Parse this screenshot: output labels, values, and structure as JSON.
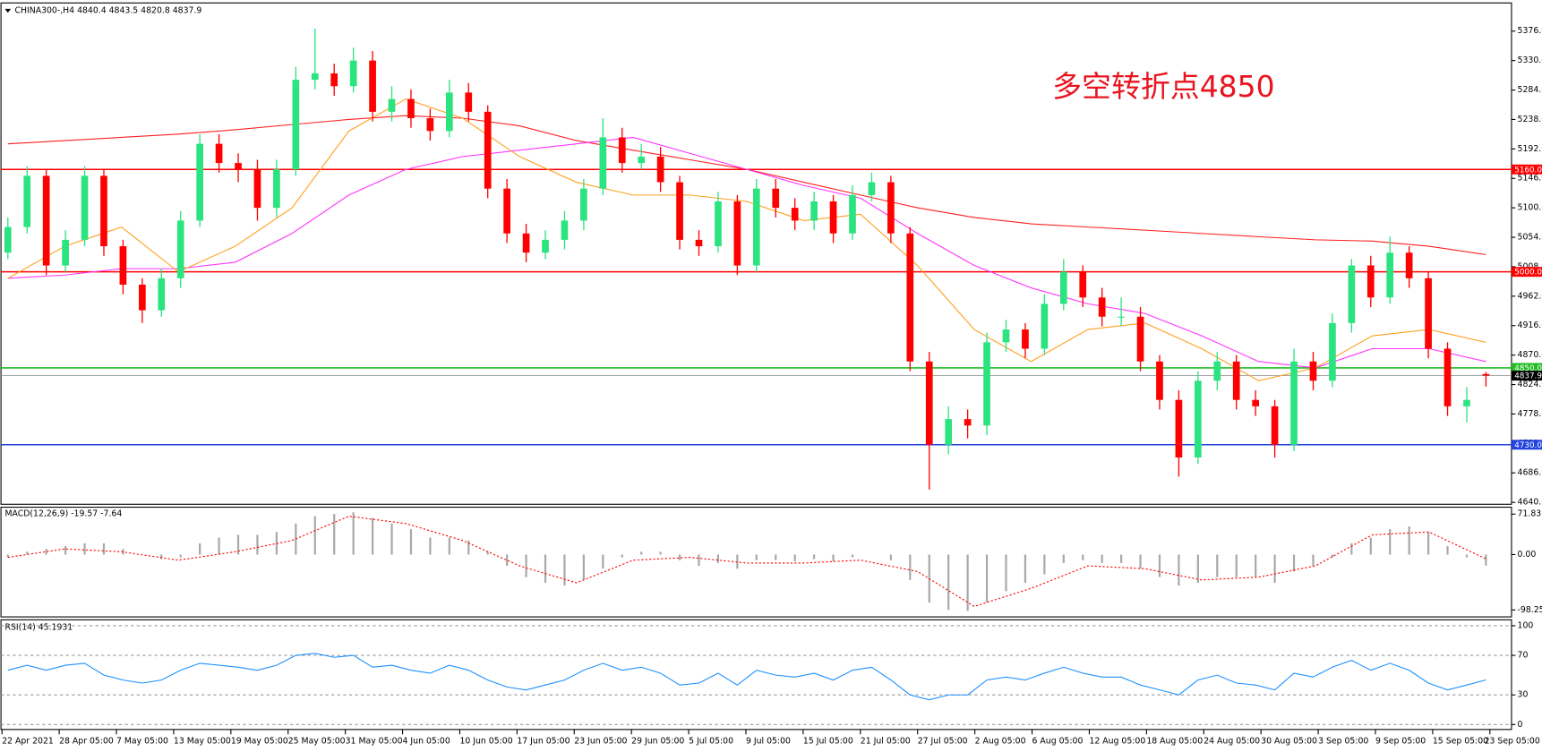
{
  "header": "CHINA300-,H4  4840.4 4843.5 4820.8 4837.9",
  "chart_data": [
    {
      "type": "candlestick",
      "annotation": "多空转折点4850",
      "up_color": "#2be37f",
      "down_color": "#ff0000",
      "ylim": [
        4637,
        5420
      ],
      "yticks": [
        {
          "value": 5376,
          "label": "5376.0"
        },
        {
          "value": 5330,
          "label": "5330.0"
        },
        {
          "value": 5284,
          "label": "5284.0"
        },
        {
          "value": 5238,
          "label": "5238.0"
        },
        {
          "value": 5192,
          "label": "5192.0"
        },
        {
          "value": 5146,
          "label": "5146.0"
        },
        {
          "value": 5100,
          "label": "5100.0"
        },
        {
          "value": 5054,
          "label": "5054.0"
        },
        {
          "value": 5008,
          "label": "5008.0"
        },
        {
          "value": 4962,
          "label": "4962.0"
        },
        {
          "value": 4916,
          "label": "4916.0"
        },
        {
          "value": 4870,
          "label": "4870.0"
        },
        {
          "value": 4824,
          "label": "4824.0"
        },
        {
          "value": 4778,
          "label": "4778.0"
        },
        {
          "value": 4732,
          "label": "4732.0"
        },
        {
          "value": 4686,
          "label": "4686.0"
        },
        {
          "value": 4640,
          "label": "4640.0"
        }
      ],
      "levels": [
        {
          "value": 5160,
          "label": "5160.0",
          "color": "#ff0000"
        },
        {
          "value": 5000,
          "label": "5000.0",
          "color": "#ff0000"
        },
        {
          "value": 4850,
          "label": "4850.0",
          "color": "#22bb22"
        },
        {
          "value": 4837.9,
          "label": "4837.9",
          "color": "#000000"
        },
        {
          "value": 4730,
          "label": "4730.0",
          "color": "#2244dd"
        }
      ],
      "time_labels": [
        "22 Apr 2021",
        "28 Apr 05:00",
        "7 May 05:00",
        "13 May 05:00",
        "19 May 05:00",
        "25 May 05:00",
        "31 May 05:00",
        "4 Jun 05:00",
        "10 Jun 05:00",
        "17 Jun 05:00",
        "23 Jun 05:00",
        "29 Jun 05:00",
        "5 Jul 05:00",
        "9 Jul 05:00",
        "15 Jul 05:00",
        "21 Jul 05:00",
        "27 Jul 05:00",
        "2 Aug 05:00",
        "6 Aug 05:00",
        "12 Aug 05:00",
        "18 Aug 05:00",
        "24 Aug 05:00",
        "30 Aug 05:00",
        "3 Sep 05:00",
        "9 Sep 05:00",
        "15 Sep 05:00",
        "23 Sep 05:00"
      ],
      "ohlc": [
        [
          5030,
          5085,
          5020,
          5070
        ],
        [
          5070,
          5165,
          5060,
          5150
        ],
        [
          5150,
          5160,
          4995,
          5010
        ],
        [
          5010,
          5065,
          5000,
          5050
        ],
        [
          5050,
          5165,
          5040,
          5150
        ],
        [
          5150,
          5160,
          5025,
          5040
        ],
        [
          5040,
          5050,
          4965,
          4980
        ],
        [
          4980,
          4990,
          4920,
          4940
        ],
        [
          4940,
          5005,
          4930,
          4990
        ],
        [
          4990,
          5095,
          4975,
          5080
        ],
        [
          5080,
          5215,
          5070,
          5200
        ],
        [
          5200,
          5215,
          5155,
          5170
        ],
        [
          5170,
          5185,
          5140,
          5160
        ],
        [
          5160,
          5175,
          5080,
          5100
        ],
        [
          5100,
          5175,
          5085,
          5160
        ],
        [
          5160,
          5320,
          5150,
          5300
        ],
        [
          5300,
          5380,
          5285,
          5310
        ],
        [
          5310,
          5325,
          5275,
          5290
        ],
        [
          5290,
          5350,
          5280,
          5330
        ],
        [
          5330,
          5345,
          5235,
          5250
        ],
        [
          5250,
          5290,
          5235,
          5270
        ],
        [
          5270,
          5285,
          5225,
          5240
        ],
        [
          5240,
          5255,
          5205,
          5220
        ],
        [
          5220,
          5300,
          5210,
          5280
        ],
        [
          5280,
          5295,
          5235,
          5250
        ],
        [
          5250,
          5260,
          5115,
          5130
        ],
        [
          5130,
          5145,
          5045,
          5060
        ],
        [
          5060,
          5075,
          5015,
          5030
        ],
        [
          5030,
          5065,
          5020,
          5050
        ],
        [
          5050,
          5095,
          5035,
          5080
        ],
        [
          5080,
          5145,
          5065,
          5130
        ],
        [
          5130,
          5240,
          5120,
          5210
        ],
        [
          5210,
          5225,
          5155,
          5170
        ],
        [
          5170,
          5200,
          5160,
          5180
        ],
        [
          5180,
          5195,
          5125,
          5140
        ],
        [
          5140,
          5150,
          5035,
          5050
        ],
        [
          5050,
          5065,
          5025,
          5040
        ],
        [
          5040,
          5125,
          5030,
          5110
        ],
        [
          5110,
          5120,
          4995,
          5010
        ],
        [
          5010,
          5145,
          5000,
          5130
        ],
        [
          5130,
          5145,
          5085,
          5100
        ],
        [
          5100,
          5115,
          5065,
          5080
        ],
        [
          5080,
          5125,
          5065,
          5110
        ],
        [
          5110,
          5120,
          5045,
          5060
        ],
        [
          5060,
          5135,
          5050,
          5120
        ],
        [
          5120,
          5155,
          5110,
          5140
        ],
        [
          5140,
          5150,
          5045,
          5060
        ],
        [
          5060,
          5070,
          4845,
          4860
        ],
        [
          4860,
          4875,
          4660,
          4730
        ],
        [
          4730,
          4790,
          4715,
          4770
        ],
        [
          4770,
          4785,
          4740,
          4760
        ],
        [
          4760,
          4905,
          4745,
          4890
        ],
        [
          4890,
          4925,
          4875,
          4910
        ],
        [
          4910,
          4920,
          4865,
          4880
        ],
        [
          4880,
          4965,
          4870,
          4950
        ],
        [
          4950,
          5020,
          4940,
          5000
        ],
        [
          5000,
          5010,
          4945,
          4960
        ],
        [
          4960,
          4975,
          4915,
          4930
        ],
        [
          4930,
          4960,
          4915,
          4930
        ],
        [
          4930,
          4945,
          4845,
          4860
        ],
        [
          4860,
          4870,
          4785,
          4800
        ],
        [
          4800,
          4815,
          4680,
          4710
        ],
        [
          4710,
          4845,
          4700,
          4830
        ],
        [
          4830,
          4875,
          4815,
          4860
        ],
        [
          4860,
          4870,
          4785,
          4800
        ],
        [
          4800,
          4815,
          4775,
          4790
        ],
        [
          4790,
          4800,
          4710,
          4730
        ],
        [
          4730,
          4880,
          4720,
          4860
        ],
        [
          4860,
          4875,
          4815,
          4830
        ],
        [
          4830,
          4935,
          4820,
          4920
        ],
        [
          4920,
          5020,
          4905,
          5010
        ],
        [
          5010,
          5025,
          4945,
          4960
        ],
        [
          4960,
          5055,
          4950,
          5030
        ],
        [
          5030,
          5040,
          4975,
          4990
        ],
        [
          4990,
          5000,
          4865,
          4880
        ],
        [
          4880,
          4890,
          4775,
          4790
        ],
        [
          4790,
          4820,
          4765,
          4800
        ],
        [
          4840.4,
          4843.5,
          4820.8,
          4837.9
        ]
      ],
      "lines": [
        {
          "color": "#ff2020",
          "values": [
            5200,
            5205,
            5210,
            5215,
            5222,
            5230,
            5238,
            5244,
            5240,
            5228,
            5205,
            5190,
            5175,
            5160,
            5140,
            5120,
            5100,
            5085,
            5075,
            5070,
            5065,
            5060,
            5055,
            5050,
            5048,
            5040,
            5027
          ]
        },
        {
          "color": "#ff33ff",
          "values": [
            4990,
            4995,
            5005,
            5005,
            5015,
            5060,
            5120,
            5160,
            5180,
            5190,
            5200,
            5210,
            5185,
            5160,
            5135,
            5115,
            5060,
            5010,
            4975,
            4950,
            4935,
            4900,
            4860,
            4850,
            4880,
            4880,
            4860
          ]
        },
        {
          "color": "#ffa020",
          "values": [
            4990,
            5040,
            5070,
            5000,
            5040,
            5100,
            5220,
            5270,
            5240,
            5180,
            5140,
            5120,
            5120,
            5110,
            5080,
            5090,
            5010,
            4910,
            4860,
            4910,
            4920,
            4880,
            4830,
            4850,
            4900,
            4910,
            4890
          ]
        }
      ]
    },
    {
      "type": "macd",
      "label": "MACD(12,26,9) -19.57 -7.64",
      "ylim": [
        -110.5,
        84
      ],
      "yticks": [
        71.83,
        {
          "value": 0,
          "label": "0.00"
        },
        -98.25
      ],
      "histogram": {
        "color": "#a8a8a8",
        "values": [
          -5,
          5,
          10,
          15,
          20,
          20,
          10,
          0,
          -8,
          -5,
          20,
          30,
          35,
          35,
          40,
          55,
          68,
          72,
          75,
          65,
          55,
          45,
          30,
          30,
          25,
          5,
          -20,
          -40,
          -50,
          -55,
          -45,
          -25,
          -5,
          5,
          5,
          -10,
          -20,
          -15,
          -25,
          -10,
          -10,
          -12,
          -8,
          -12,
          -5,
          0,
          -10,
          -45,
          -85,
          -98,
          -100,
          -85,
          -65,
          -50,
          -35,
          -15,
          -10,
          -15,
          -15,
          -25,
          -40,
          -55,
          -50,
          -40,
          -40,
          -40,
          -50,
          -30,
          -20,
          -5,
          20,
          30,
          45,
          50,
          40,
          15,
          -5,
          -19.57
        ]
      },
      "signal": {
        "color": "#ff0000",
        "values": [
          -5,
          10,
          5,
          -10,
          5,
          25,
          68,
          55,
          25,
          -20,
          -50,
          -10,
          -5,
          -15,
          -15,
          -10,
          -30,
          -92,
          -60,
          -20,
          -25,
          -45,
          -40,
          -20,
          35,
          40,
          -7.64
        ]
      }
    },
    {
      "type": "line",
      "label": "RSI(14) 45.1931",
      "color": "#1e90ff",
      "ylim": [
        -5,
        106
      ],
      "yticks": [
        100,
        70,
        30,
        0
      ],
      "values": [
        55,
        60,
        55,
        60,
        62,
        50,
        45,
        42,
        45,
        55,
        62,
        60,
        58,
        55,
        60,
        70,
        72,
        68,
        70,
        58,
        60,
        55,
        52,
        60,
        55,
        45,
        38,
        35,
        40,
        45,
        55,
        62,
        55,
        58,
        52,
        40,
        42,
        52,
        40,
        55,
        50,
        48,
        52,
        45,
        55,
        58,
        45,
        30,
        25,
        30,
        30,
        45,
        48,
        45,
        52,
        58,
        52,
        48,
        48,
        40,
        35,
        30,
        45,
        50,
        42,
        40,
        35,
        52,
        48,
        58,
        65,
        55,
        62,
        55,
        42,
        35,
        40,
        45.1931
      ]
    }
  ]
}
